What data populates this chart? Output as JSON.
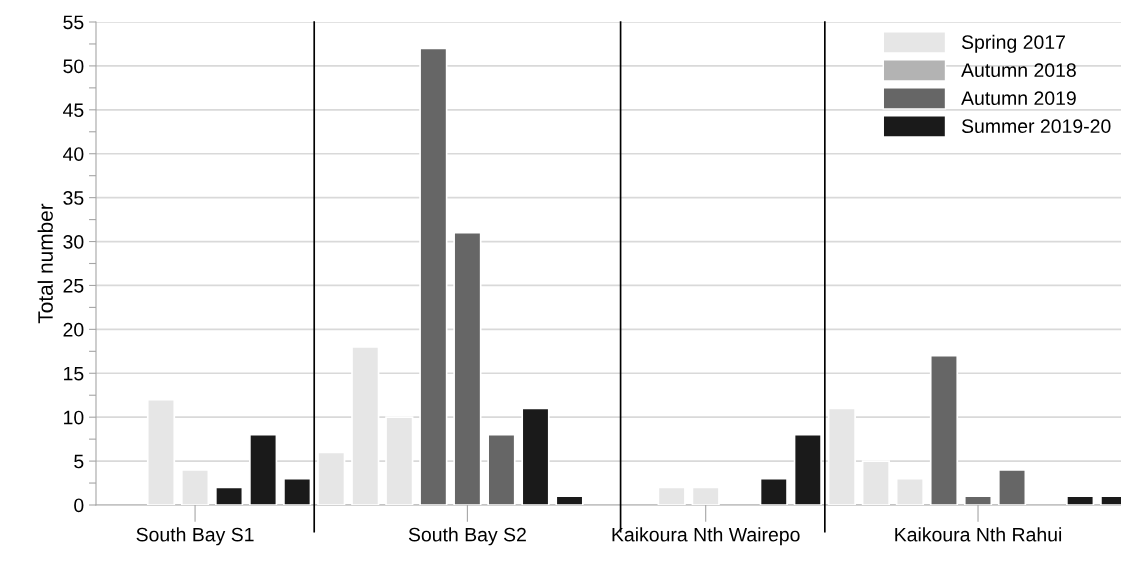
{
  "chart_data": {
    "type": "bar",
    "ylabel": "Total number",
    "categories": [
      null,
      null,
      "South Bay S1",
      null,
      null,
      null,
      null,
      null,
      null,
      null,
      "South Bay S2",
      null,
      null,
      null,
      null,
      null,
      null,
      "Kaikoura Nth Wairepo",
      null,
      null,
      null,
      null,
      null,
      null,
      null,
      "Kaikoura Nth Rahui",
      null,
      null,
      null,
      null
    ],
    "series": [
      {
        "name": "Spring 2017",
        "color": "#e6e6e6",
        "values": [
          null,
          12,
          4,
          null,
          null,
          null,
          6,
          18,
          10,
          null,
          null,
          null,
          null,
          null,
          null,
          null,
          2,
          2,
          null,
          null,
          null,
          11,
          5,
          3,
          null,
          null,
          null,
          null,
          null,
          null
        ]
      },
      {
        "name": "Autumn 2018",
        "color": "#b3b3b3",
        "values": [
          null,
          null,
          null,
          null,
          null,
          null,
          null,
          null,
          null,
          null,
          null,
          null,
          null,
          null,
          null,
          null,
          null,
          null,
          null,
          null,
          null,
          null,
          null,
          null,
          null,
          null,
          null,
          null,
          null,
          null
        ]
      },
      {
        "name": "Autumn 2019",
        "color": "#666666",
        "values": [
          null,
          null,
          null,
          null,
          null,
          null,
          null,
          null,
          null,
          52,
          31,
          8,
          null,
          null,
          null,
          null,
          null,
          null,
          null,
          null,
          null,
          null,
          null,
          null,
          17,
          1,
          4,
          null,
          null,
          null
        ]
      },
      {
        "name": "Summer 2019-20",
        "color": "#1a1a1a",
        "values": [
          null,
          null,
          null,
          2,
          8,
          3,
          null,
          null,
          null,
          null,
          null,
          null,
          11,
          1,
          null,
          null,
          null,
          null,
          null,
          3,
          8,
          null,
          null,
          null,
          null,
          null,
          null,
          null,
          1,
          1
        ]
      }
    ],
    "ylim": [
      0,
      55
    ],
    "yticks": [
      0,
      {
        "value": 2.5,
        "label": null
      },
      5,
      {
        "value": 7.5,
        "label": null
      },
      10,
      {
        "value": 12.5,
        "label": null
      },
      15,
      {
        "value": 17.5,
        "label": null
      },
      20,
      {
        "value": 22.5,
        "label": null
      },
      25,
      {
        "value": 27.5,
        "label": null
      },
      30,
      {
        "value": 32.5,
        "label": null
      },
      35,
      {
        "value": 37.5,
        "label": null
      },
      40,
      {
        "value": 42.5,
        "label": null
      },
      45,
      {
        "value": 47.5,
        "label": null
      },
      50,
      {
        "value": 52.5,
        "label": null
      },
      55
    ],
    "grid": "y",
    "legend": "top right"
  }
}
